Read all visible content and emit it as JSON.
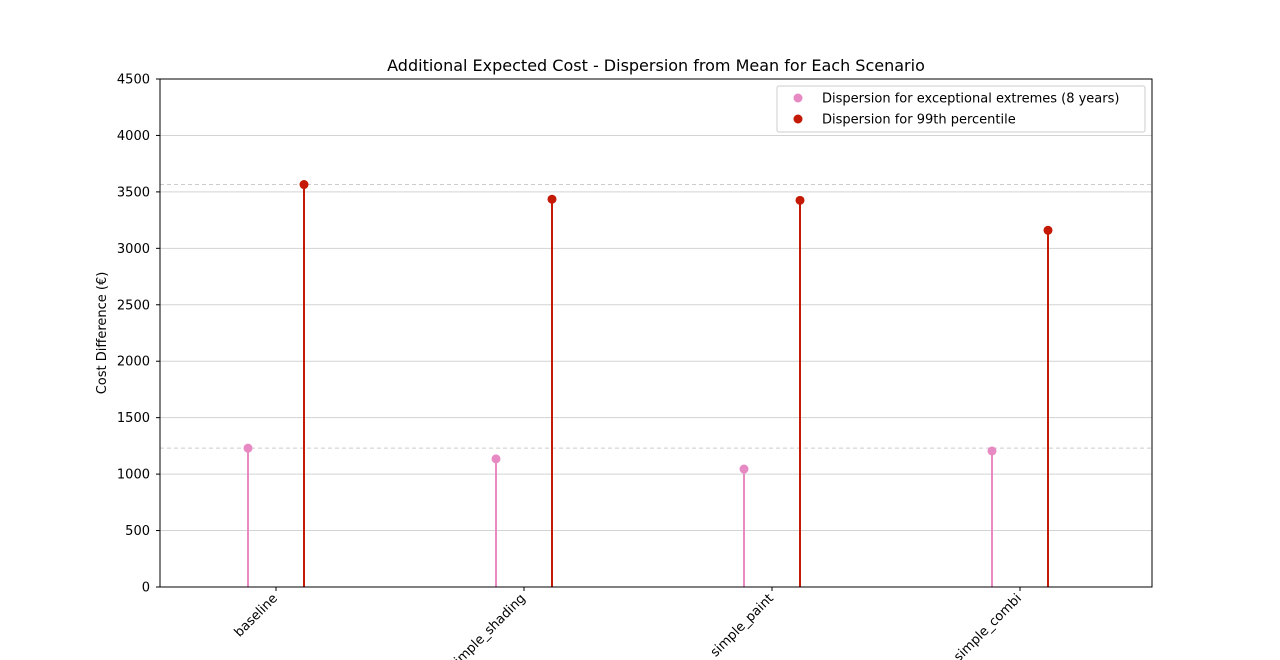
{
  "chart_data": {
    "type": "lollipop",
    "title": "Additional Expected Cost - Dispersion from Mean for Each Scenario",
    "ylabel": "Cost Difference (€)",
    "xlabel": "",
    "categories": [
      "baseline",
      "simple_shading",
      "simple_paint",
      "simple_combi"
    ],
    "ylim": [
      0,
      4500
    ],
    "yticks": [
      0,
      500,
      1000,
      1500,
      2000,
      2500,
      3000,
      3500,
      4000,
      4500
    ],
    "grid": "y",
    "legend_position": "top-right",
    "reference_lines": [
      1230,
      3565
    ],
    "series": [
      {
        "name": "Dispersion for exceptional extremes (8 years)",
        "color": "#e78ac3",
        "values": [
          1230,
          1135,
          1045,
          1205
        ]
      },
      {
        "name": "Dispersion for 99th percentile",
        "color": "#c41a05",
        "values": [
          3565,
          3435,
          3425,
          3160
        ]
      }
    ]
  }
}
